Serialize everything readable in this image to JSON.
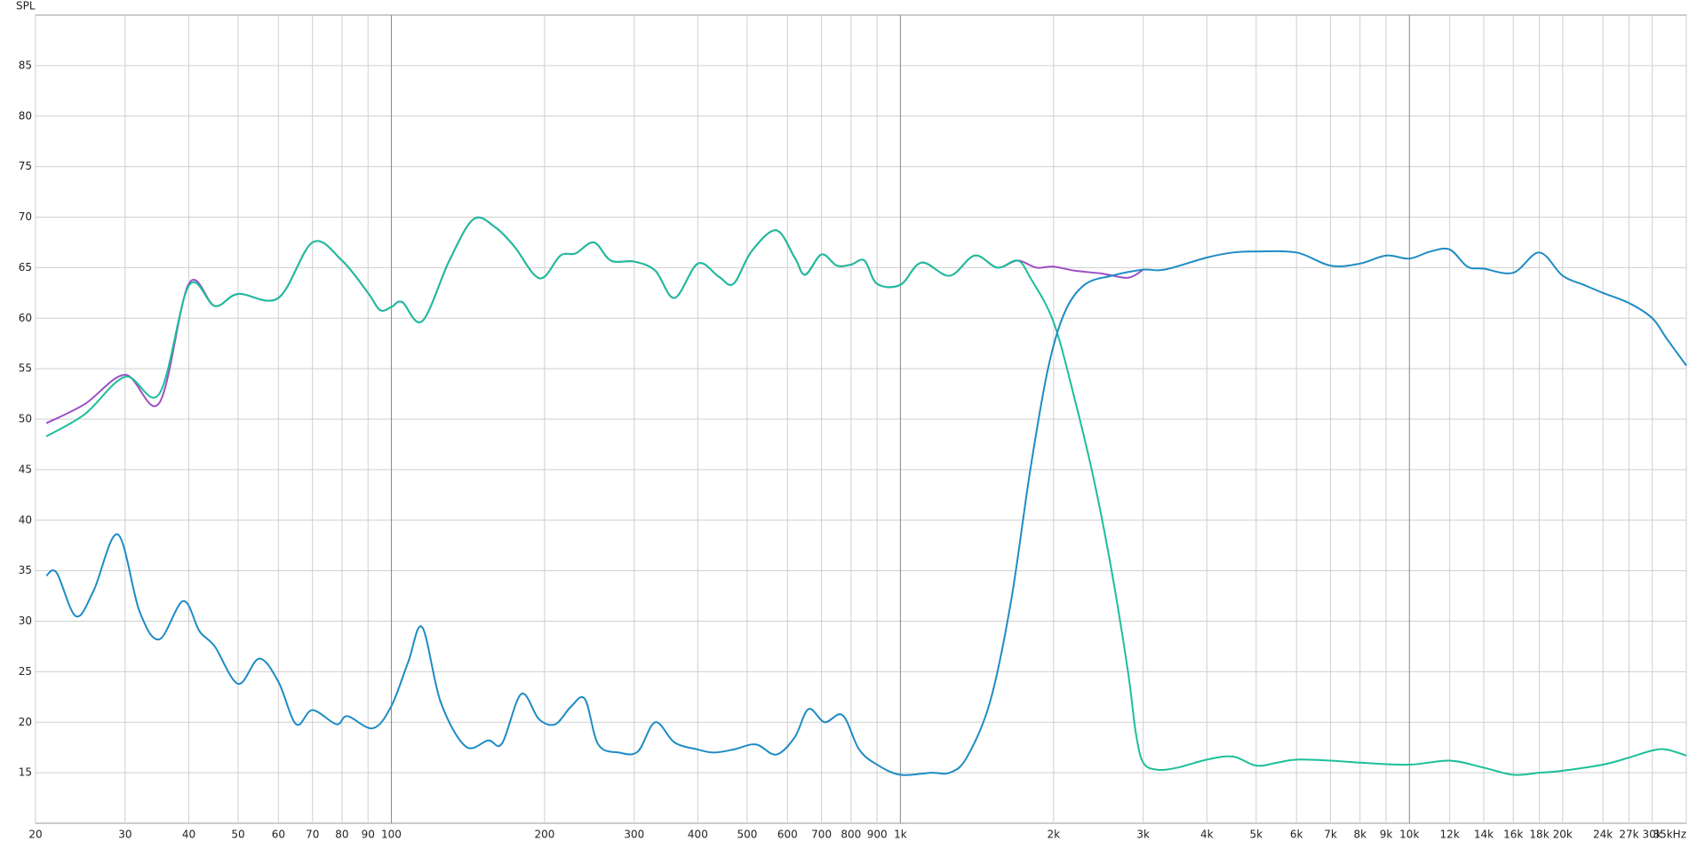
{
  "chart_data": {
    "type": "line",
    "y_label": "SPL",
    "log_x": true,
    "grid": true,
    "xlim": [
      20,
      35000
    ],
    "ylim": [
      10,
      90
    ],
    "xticks": [
      20,
      30,
      40,
      50,
      60,
      70,
      80,
      90,
      100,
      200,
      300,
      400,
      500,
      600,
      700,
      800,
      900,
      {
        "value": 1000,
        "label": "1k"
      },
      {
        "value": 2000,
        "label": "2k"
      },
      {
        "value": 3000,
        "label": "3k"
      },
      {
        "value": 4000,
        "label": "4k"
      },
      {
        "value": 5000,
        "label": "5k"
      },
      {
        "value": 6000,
        "label": "6k"
      },
      {
        "value": 7000,
        "label": "7k"
      },
      {
        "value": 8000,
        "label": "8k"
      },
      {
        "value": 9000,
        "label": "9k"
      },
      {
        "value": 10000,
        "label": "10k"
      },
      {
        "value": 12000,
        "label": "12k"
      },
      {
        "value": 14000,
        "label": "14k"
      },
      {
        "value": 16000,
        "label": "16k"
      },
      {
        "value": 18000,
        "label": "18k"
      },
      {
        "value": 20000,
        "label": "20k"
      },
      {
        "value": 24000,
        "label": "24k"
      },
      {
        "value": 27000,
        "label": "27k"
      },
      {
        "value": 30000,
        "label": "30k"
      },
      {
        "value": 35000,
        "label": "35kHz"
      }
    ],
    "yticks": [
      15,
      20,
      25,
      30,
      35,
      40,
      45,
      50,
      55,
      60,
      65,
      70,
      75,
      80,
      85
    ],
    "series": [
      {
        "color": "#9b4fc4",
        "x": [
          21,
          25,
          30,
          35,
          40,
          45,
          50,
          60,
          70,
          80,
          90,
          95,
          100,
          105,
          115,
          130,
          145,
          160,
          175,
          190,
          200,
          215,
          230,
          250,
          270,
          300,
          330,
          360,
          400,
          440,
          470,
          510,
          570,
          620,
          650,
          700,
          750,
          800,
          850,
          900,
          1000,
          1100,
          1250,
          1400,
          1550,
          1700,
          1850,
          2000,
          2200,
          2500,
          2800,
          3000
        ],
        "values": [
          49.6,
          51.5,
          54.4,
          51.6,
          63.4,
          61.2,
          62.4,
          62.0,
          67.5,
          65.7,
          62.5,
          60.8,
          61.1,
          61.6,
          59.7,
          65.7,
          69.8,
          69.0,
          67.0,
          64.4,
          64.1,
          66.2,
          66.4,
          67.5,
          65.7,
          65.6,
          64.7,
          62.0,
          65.4,
          64.1,
          63.4,
          66.6,
          68.7,
          66.0,
          64.3,
          66.3,
          65.2,
          65.3,
          65.7,
          63.4,
          63.3,
          65.5,
          64.2,
          66.2,
          65.0,
          65.7,
          65.0,
          65.1,
          64.7,
          64.4,
          64.0,
          64.8
        ]
      },
      {
        "color": "#1bbf9a",
        "x": [
          21,
          25,
          30,
          35,
          40,
          45,
          50,
          60,
          70,
          80,
          90,
          95,
          100,
          105,
          115,
          130,
          145,
          160,
          175,
          190,
          200,
          215,
          230,
          250,
          270,
          300,
          330,
          360,
          400,
          440,
          470,
          510,
          570,
          620,
          650,
          700,
          750,
          800,
          850,
          900,
          1000,
          1100,
          1250,
          1400,
          1550,
          1700,
          1800,
          2000,
          2200,
          2400,
          2600,
          2800,
          2900,
          3000,
          3200,
          3500,
          4000,
          4500,
          5000,
          5500,
          6000,
          7000,
          8000,
          10000,
          12000,
          14000,
          16000,
          18000,
          20000,
          24000,
          27000,
          30000,
          32000,
          35000
        ],
        "values": [
          48.3,
          50.5,
          54.2,
          52.5,
          63.2,
          61.2,
          62.4,
          62.0,
          67.5,
          65.7,
          62.5,
          60.8,
          61.1,
          61.6,
          59.7,
          65.7,
          69.8,
          69.0,
          67.0,
          64.4,
          64.1,
          66.2,
          66.4,
          67.5,
          65.7,
          65.6,
          64.7,
          62.0,
          65.4,
          64.1,
          63.4,
          66.6,
          68.7,
          66.0,
          64.3,
          66.3,
          65.2,
          65.3,
          65.7,
          63.4,
          63.3,
          65.5,
          64.2,
          66.2,
          65.0,
          65.7,
          64.0,
          59.6,
          52.0,
          44.0,
          35.0,
          25.0,
          19.0,
          16.0,
          15.3,
          15.5,
          16.3,
          16.6,
          15.7,
          16.0,
          16.3,
          16.2,
          16.0,
          15.8,
          16.2,
          15.5,
          14.8,
          15.0,
          15.2,
          15.8,
          16.5,
          17.2,
          17.3,
          16.7
        ]
      },
      {
        "color": "#1e8cc4",
        "x": [
          21,
          22,
          24,
          26,
          29,
          32,
          35,
          39,
          42,
          45,
          50,
          55,
          60,
          65,
          70,
          78,
          82,
          92,
          100,
          108,
          115,
          125,
          140,
          155,
          165,
          180,
          195,
          210,
          225,
          240,
          255,
          280,
          305,
          330,
          360,
          400,
          430,
          470,
          520,
          570,
          620,
          660,
          710,
          770,
          830,
          900,
          1000,
          1150,
          1250,
          1350,
          1500,
          1650,
          1800,
          1950,
          2100,
          2300,
          2600,
          3000,
          3300,
          4000,
          4500,
          5000,
          6000,
          7000,
          8000,
          9000,
          10000,
          11000,
          12000,
          13000,
          14000,
          16000,
          18000,
          20000,
          22000,
          24000,
          27000,
          30000,
          32000,
          35000
        ],
        "values": [
          34.5,
          34.8,
          30.5,
          33.0,
          38.6,
          31.0,
          28.2,
          32.0,
          29.0,
          27.5,
          23.8,
          26.3,
          24.0,
          19.8,
          21.2,
          19.8,
          20.6,
          19.4,
          21.6,
          26.0,
          29.4,
          22.0,
          17.6,
          18.2,
          17.9,
          22.8,
          20.3,
          19.8,
          21.5,
          22.3,
          17.8,
          17.0,
          17.1,
          20.0,
          18.0,
          17.3,
          17.0,
          17.3,
          17.8,
          16.8,
          18.5,
          21.3,
          20.0,
          20.7,
          17.3,
          15.8,
          14.8,
          15.0,
          15.0,
          16.5,
          22.0,
          32.0,
          45.0,
          55.0,
          60.5,
          63.3,
          64.2,
          64.8,
          64.8,
          66.0,
          66.5,
          66.6,
          66.5,
          65.2,
          65.4,
          66.2,
          65.9,
          66.6,
          66.8,
          65.1,
          64.9,
          64.5,
          66.5,
          64.2,
          63.3,
          62.5,
          61.5,
          60.0,
          58.0,
          55.3
        ]
      }
    ]
  }
}
